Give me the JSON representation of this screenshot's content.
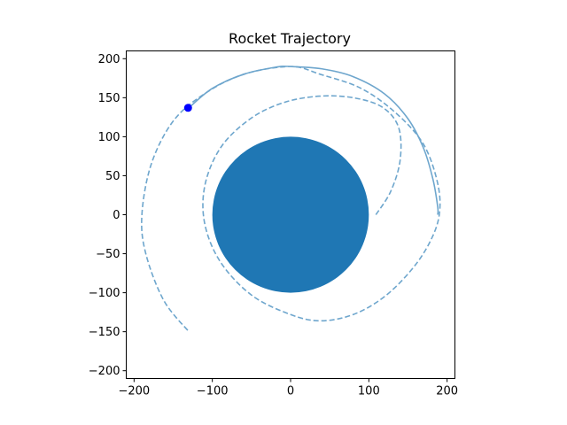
{
  "chart_data": {
    "type": "line",
    "title": "Rocket Trajectory",
    "xlabel": "",
    "ylabel": "",
    "xlim": [
      -210,
      210
    ],
    "ylim": [
      -210,
      210
    ],
    "xticks": [
      -200,
      -100,
      0,
      100,
      200
    ],
    "yticks": [
      -200,
      -150,
      -100,
      -50,
      0,
      50,
      100,
      150,
      200
    ],
    "grid": false,
    "legend": "none",
    "planet": {
      "center": [
        0,
        0
      ],
      "radius": 100,
      "color": "#1f77b4"
    },
    "series": [
      {
        "style": "dashed",
        "color": "#6ea6cd",
        "x": [
          109,
          128,
          140,
          138,
          117,
          80,
          37,
          -8,
          -50,
          -88,
          -109,
          -110,
          -90,
          -50,
          0,
          38,
          80,
          120,
          155,
          178,
          190,
          188,
          170,
          135,
          90,
          38,
          0,
          -60,
          -110,
          -150,
          -178,
          -190,
          -185,
          -162,
          -130
        ],
        "y": [
          0,
          30,
          70,
          112,
          138,
          150,
          152,
          144,
          124,
          88,
          40,
          -10,
          -60,
          -103,
          -128,
          -136,
          -128,
          -105,
          -70,
          -35,
          0,
          40,
          90,
          130,
          162,
          180,
          190,
          180,
          155,
          120,
          65,
          0,
          -50,
          -110,
          -150
        ]
      },
      {
        "style": "solid",
        "color": "#6ea6cd",
        "x": [
          -130,
          -100,
          -60,
          -20,
          0,
          40,
          80,
          120,
          150,
          170,
          182,
          188,
          188
        ],
        "y": [
          137,
          162,
          180,
          189,
          190,
          187,
          177,
          155,
          123,
          85,
          45,
          10,
          0
        ]
      }
    ],
    "marker": {
      "x": -131,
      "y": 137,
      "color": "#0000ff"
    }
  }
}
